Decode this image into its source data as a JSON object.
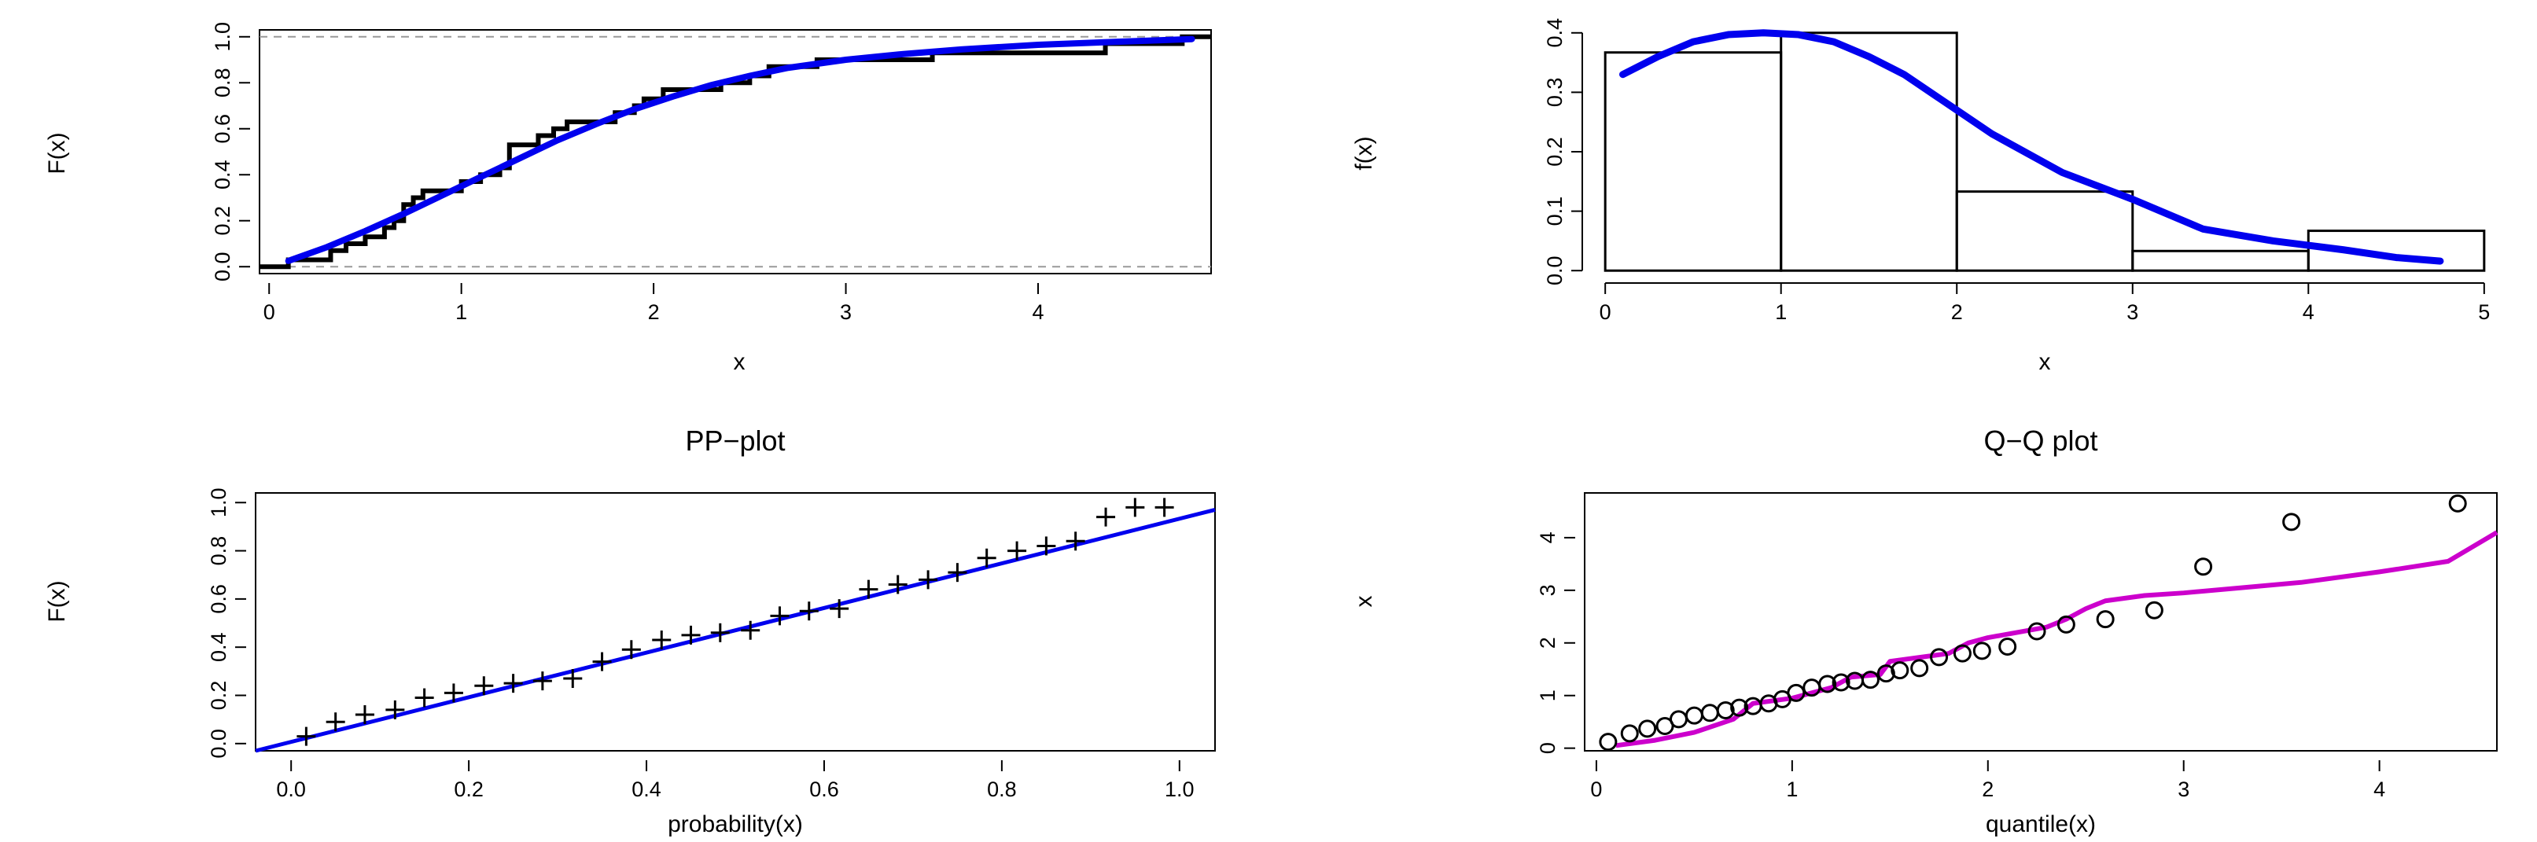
{
  "chart_data": [
    {
      "type": "line",
      "title": "",
      "xlabel": "x",
      "ylabel": "F(x)",
      "xlim": [
        -0.05,
        4.9
      ],
      "ylim": [
        -0.03,
        1.03
      ],
      "xticks": [
        0,
        1,
        2,
        3,
        4
      ],
      "yticks": [
        0.0,
        0.2,
        0.4,
        0.6,
        0.8,
        1.0
      ],
      "ytick_labels": [
        "0.0",
        "0.2",
        "0.4",
        "0.6",
        "0.8",
        "1.0"
      ],
      "reference_lines_y": [
        0,
        1
      ],
      "series": [
        {
          "kind": "step",
          "color": "#000000",
          "points": [
            [
              -0.05,
              0
            ],
            [
              0.1,
              0.03
            ],
            [
              0.32,
              0.07
            ],
            [
              0.4,
              0.1
            ],
            [
              0.5,
              0.13
            ],
            [
              0.6,
              0.17
            ],
            [
              0.65,
              0.2
            ],
            [
              0.7,
              0.27
            ],
            [
              0.75,
              0.3
            ],
            [
              0.8,
              0.33
            ],
            [
              1.0,
              0.37
            ],
            [
              1.1,
              0.4
            ],
            [
              1.2,
              0.43
            ],
            [
              1.25,
              0.53
            ],
            [
              1.4,
              0.57
            ],
            [
              1.48,
              0.6
            ],
            [
              1.55,
              0.63
            ],
            [
              1.8,
              0.67
            ],
            [
              1.9,
              0.7
            ],
            [
              1.95,
              0.73
            ],
            [
              2.05,
              0.77
            ],
            [
              2.35,
              0.8
            ],
            [
              2.5,
              0.83
            ],
            [
              2.6,
              0.87
            ],
            [
              2.85,
              0.9
            ],
            [
              3.45,
              0.93
            ],
            [
              4.35,
              0.97
            ],
            [
              4.75,
              1.0
            ],
            [
              4.9,
              1.0
            ]
          ]
        },
        {
          "kind": "line",
          "color": "#0000ee",
          "x": [
            0.1,
            0.3,
            0.5,
            0.7,
            0.9,
            1.1,
            1.3,
            1.5,
            1.7,
            1.9,
            2.1,
            2.3,
            2.5,
            2.7,
            3.0,
            3.3,
            3.6,
            4.0,
            4.4,
            4.8
          ],
          "y": [
            0.025,
            0.085,
            0.155,
            0.23,
            0.31,
            0.39,
            0.47,
            0.55,
            0.62,
            0.685,
            0.74,
            0.79,
            0.83,
            0.865,
            0.9,
            0.925,
            0.945,
            0.965,
            0.978,
            0.99
          ]
        }
      ]
    },
    {
      "type": "bar",
      "title": "",
      "xlabel": "x",
      "ylabel": "f(x)",
      "xlim": [
        -0.05,
        5.05
      ],
      "ylim": [
        -0.005,
        0.405
      ],
      "xticks": [
        0,
        1,
        2,
        3,
        4,
        5
      ],
      "yticks": [
        0.0,
        0.1,
        0.2,
        0.3,
        0.4
      ],
      "ytick_labels": [
        "0.0",
        "0.1",
        "0.2",
        "0.3",
        "0.4"
      ],
      "bins": [
        [
          0,
          1
        ],
        [
          1,
          2
        ],
        [
          2,
          3
        ],
        [
          3,
          4
        ],
        [
          4,
          5
        ]
      ],
      "values": [
        0.367,
        0.4,
        0.133,
        0.033,
        0.067
      ],
      "density": {
        "color": "#0000ee",
        "x": [
          0.1,
          0.3,
          0.5,
          0.7,
          0.9,
          1.1,
          1.3,
          1.5,
          1.7,
          1.9,
          2.2,
          2.6,
          3.0,
          3.4,
          3.8,
          4.2,
          4.5,
          4.75
        ],
        "y": [
          0.33,
          0.36,
          0.385,
          0.397,
          0.4,
          0.397,
          0.385,
          0.36,
          0.33,
          0.29,
          0.23,
          0.165,
          0.12,
          0.07,
          0.05,
          0.035,
          0.022,
          0.016
        ]
      }
    },
    {
      "type": "scatter",
      "title": "PP−plot",
      "xlabel": "probability(x)",
      "ylabel": "F(x)",
      "xlim": [
        -0.04,
        1.04
      ],
      "ylim": [
        -0.03,
        1.04
      ],
      "xticks": [
        0.0,
        0.2,
        0.4,
        0.6,
        0.8,
        1.0
      ],
      "xtick_labels": [
        "0.0",
        "0.2",
        "0.4",
        "0.6",
        "0.8",
        "1.0"
      ],
      "yticks": [
        0.0,
        0.2,
        0.4,
        0.6,
        0.8,
        1.0
      ],
      "ytick_labels": [
        "0.0",
        "0.2",
        "0.4",
        "0.6",
        "0.8",
        "1.0"
      ],
      "line": {
        "color": "#0000ee",
        "from": [
          -0.04,
          -0.03
        ],
        "to": [
          1.04,
          0.97
        ]
      },
      "points": {
        "marker": "plus",
        "x": [
          0.017,
          0.05,
          0.083,
          0.117,
          0.15,
          0.183,
          0.217,
          0.25,
          0.283,
          0.317,
          0.35,
          0.383,
          0.417,
          0.45,
          0.483,
          0.517,
          0.55,
          0.583,
          0.617,
          0.65,
          0.683,
          0.717,
          0.75,
          0.783,
          0.817,
          0.85,
          0.883,
          0.917,
          0.95,
          0.983
        ],
        "y": [
          0.03,
          0.09,
          0.12,
          0.14,
          0.19,
          0.21,
          0.24,
          0.25,
          0.26,
          0.27,
          0.34,
          0.39,
          0.43,
          0.45,
          0.46,
          0.47,
          0.53,
          0.55,
          0.56,
          0.64,
          0.66,
          0.68,
          0.71,
          0.77,
          0.8,
          0.82,
          0.84,
          0.94,
          0.98,
          0.98
        ]
      }
    },
    {
      "type": "scatter",
      "title": "Q−Q plot",
      "xlabel": "quantile(x)",
      "ylabel": "x",
      "xlim": [
        -0.06,
        4.6
      ],
      "ylim": [
        -0.05,
        4.85
      ],
      "xticks": [
        0,
        1,
        2,
        3,
        4
      ],
      "yticks": [
        0,
        1,
        2,
        3,
        4
      ],
      "line": {
        "color": "#cc00cc",
        "x": [
          0.1,
          0.3,
          0.5,
          0.7,
          0.8,
          1.0,
          1.2,
          1.3,
          1.45,
          1.5,
          1.7,
          1.8,
          1.9,
          2.0,
          2.3,
          2.4,
          2.5,
          2.6,
          2.8,
          3.0,
          3.3,
          3.6,
          4.0,
          4.35,
          4.6
        ],
        "y": [
          0.05,
          0.15,
          0.3,
          0.55,
          0.85,
          0.95,
          1.15,
          1.35,
          1.4,
          1.65,
          1.75,
          1.8,
          2.0,
          2.1,
          2.3,
          2.45,
          2.65,
          2.8,
          2.9,
          2.95,
          3.05,
          3.15,
          3.35,
          3.55,
          4.1
        ]
      },
      "points": {
        "marker": "circle",
        "x": [
          0.06,
          0.17,
          0.26,
          0.35,
          0.42,
          0.5,
          0.58,
          0.66,
          0.73,
          0.8,
          0.88,
          0.95,
          1.02,
          1.1,
          1.18,
          1.25,
          1.32,
          1.4,
          1.48,
          1.55,
          1.65,
          1.75,
          1.87,
          1.97,
          2.1,
          2.25,
          2.4,
          2.6,
          2.85,
          3.1,
          3.55,
          4.4
        ],
        "y": [
          0.12,
          0.28,
          0.37,
          0.42,
          0.55,
          0.62,
          0.67,
          0.72,
          0.77,
          0.8,
          0.85,
          0.93,
          1.05,
          1.15,
          1.22,
          1.25,
          1.28,
          1.3,
          1.42,
          1.48,
          1.52,
          1.73,
          1.8,
          1.85,
          1.93,
          2.22,
          2.35,
          2.45,
          2.62,
          3.45,
          4.3,
          4.65
        ]
      }
    }
  ]
}
